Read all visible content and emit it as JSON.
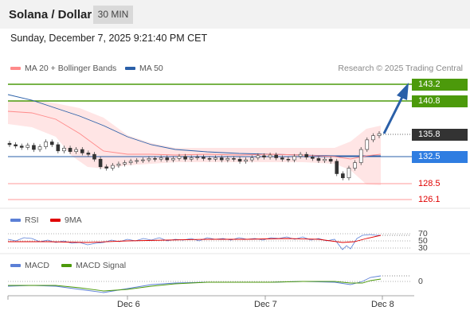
{
  "header": {
    "title": "Solana / Dollar",
    "interval": "30 MIN"
  },
  "datetime": "Sunday, December 7, 2025 9:21:40 PM CET",
  "legend": {
    "ma20": "MA 20 + Bollinger Bands",
    "ma50": "MA 50",
    "copyright": "Research © 2025 Trading Central"
  },
  "colors": {
    "green": "#4c9a0b",
    "blue": "#2f7de1",
    "pink": "#ff8a8a",
    "red": "#e00000",
    "dark": "#333333",
    "arrow": "#2a5fa8"
  },
  "price_levels": {
    "r2": {
      "value": "143.2",
      "color": "#4c9a0b"
    },
    "r1": {
      "value": "140.8",
      "color": "#4c9a0b"
    },
    "current": {
      "value": "135.8",
      "color": "#333333"
    },
    "pivot": {
      "value": "132.5",
      "color": "#2f7de1"
    },
    "s1": {
      "value": "128.5",
      "color": "#e00000"
    },
    "s2": {
      "value": "126.1",
      "color": "#e00000"
    }
  },
  "rsi_panel": {
    "label": "RSI",
    "ma_label": "9MA",
    "levels": [
      "70",
      "50",
      "30"
    ]
  },
  "macd_panel": {
    "label": "MACD",
    "signal_label": "MACD Signal",
    "zero_label": "0"
  },
  "x_axis": {
    "labels": [
      "Dec 6",
      "Dec 7",
      "Dec 8"
    ]
  },
  "chart_data": {
    "type": "candlestick",
    "pair": "SOL/USD",
    "interval": "30 MIN",
    "ylim": [
      125,
      145
    ],
    "candles_close_approx": [
      134.2,
      134.0,
      133.8,
      134.1,
      133.5,
      133.9,
      134.6,
      134.2,
      133.3,
      133.7,
      133.2,
      133.5,
      133.0,
      132.8,
      132.1,
      131.0,
      130.8,
      131.2,
      131.4,
      131.6,
      131.8,
      131.9,
      132.0,
      132.2,
      132.1,
      132.3,
      132.0,
      132.2,
      132.5,
      132.1,
      132.3,
      132.4,
      132.2,
      132.1,
      132.3,
      132.0,
      132.2,
      132.1,
      131.8,
      132.0,
      132.3,
      132.6,
      132.4,
      132.7,
      132.3,
      132.1,
      132.0,
      132.5,
      132.8,
      132.4,
      132.2,
      131.9,
      132.1,
      131.8,
      130.0,
      129.4,
      130.8,
      131.6,
      133.5,
      134.9,
      135.5,
      135.8
    ],
    "levels": {
      "resistance": [
        143.2,
        140.8
      ],
      "pivot": 132.5,
      "support": [
        128.5,
        126.1
      ],
      "last": 135.8
    },
    "rsi_levels": [
      70,
      50,
      30
    ],
    "x_labels": [
      "Dec 6",
      "Dec 7",
      "Dec 8"
    ]
  }
}
